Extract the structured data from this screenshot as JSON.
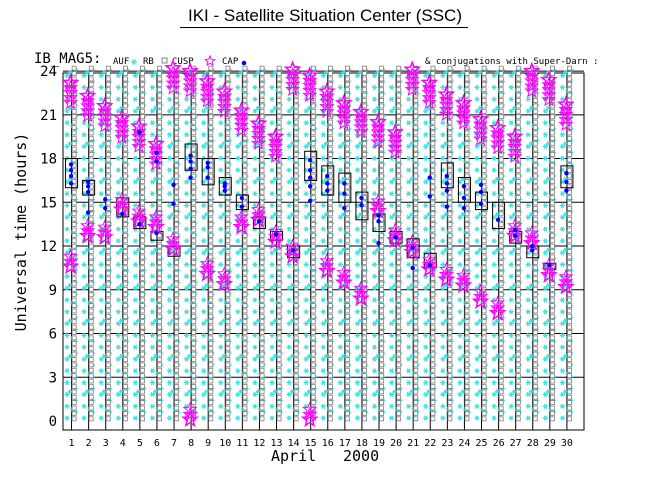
{
  "page": {
    "title": "IKI - Satellite Situation Center (SSC)"
  },
  "legend": {
    "satellite": "IB_MAG5:",
    "auf": "AUF",
    "rb": "RB",
    "cusp": "CUSP",
    "cap": "CAP",
    "conjugations": "& conjugations with Super-Darn :"
  },
  "colors": {
    "auf": "#40e0e0",
    "rb": "#808080",
    "cusp": "#ff00ff",
    "cap": "#0000ff",
    "frame": "#000000"
  },
  "chart_data": {
    "type": "table",
    "ylabel": "Universal time (hours)",
    "xlabel": "April",
    "year": "2000",
    "ylim": [
      0,
      24.5
    ],
    "yticks": [
      0,
      3,
      6,
      9,
      12,
      15,
      18,
      21,
      24
    ],
    "days": [
      1,
      2,
      3,
      4,
      5,
      6,
      7,
      8,
      9,
      10,
      11,
      12,
      13,
      14,
      15,
      16,
      17,
      18,
      19,
      20,
      21,
      22,
      23,
      24,
      25,
      26,
      27,
      28,
      29,
      30
    ],
    "cusp_start": [
      23.2,
      22.3,
      21.6,
      20.8,
      20.2,
      19.0,
      24.2,
      24.0,
      23.3,
      22.6,
      21.3,
      20.4,
      19.5,
      24.1,
      23.7,
      22.6,
      21.8,
      21.2,
      20.5,
      19.8,
      24.1,
      23.2,
      22.4,
      21.8,
      20.7,
      20.1,
      19.5,
      24.0,
      23.4,
      21.7
    ],
    "cusp_end": [
      10.6,
      12.7,
      12.6,
      14.5,
      13.7,
      13.3,
      11.8,
      0.1,
      10.1,
      9.4,
      13.3,
      13.8,
      12.3,
      11.3,
      0.1,
      10.3,
      9.5,
      8.4,
      14.4,
      12.4,
      11.6,
      10.4,
      9.7,
      9.3,
      8.2,
      7.4,
      12.7,
      12.2,
      10.0,
      9.2
    ],
    "box_top": [
      18.0,
      16.5,
      null,
      15.3,
      14.0,
      13.0,
      12.0,
      19.0,
      18.0,
      16.7,
      15.5,
      14.0,
      13.0,
      12.0,
      18.5,
      17.5,
      17.0,
      15.7,
      14.2,
      13.0,
      12.5,
      11.5,
      17.7,
      16.7,
      15.7,
      15.0,
      13.0,
      12.0,
      10.8,
      17.5
    ],
    "box_bottom": [
      16.0,
      15.5,
      14.5,
      14.0,
      13.2,
      12.4,
      11.3,
      17.2,
      16.2,
      15.5,
      14.5,
      13.2,
      12.4,
      11.2,
      16.5,
      15.5,
      15.0,
      13.8,
      13.0,
      12.2,
      11.2,
      10.5,
      16.0,
      15.0,
      14.5,
      13.2,
      12.2,
      11.2,
      10.4,
      16.0
    ],
    "cap_dots": [
      [
        16.3,
        16.8,
        17.2,
        17.6
      ],
      [
        15.7,
        16.1,
        16.4,
        14.3
      ],
      [
        15.2,
        14.6
      ],
      [
        14.2
      ],
      [
        13.5,
        19.8
      ],
      [
        12.9,
        17.8,
        18.4
      ],
      [
        14.9,
        16.2
      ],
      [
        17.8,
        18.2,
        16.7,
        17.3
      ],
      [
        16.7,
        17.4,
        17.7
      ],
      [
        15.8,
        16.3,
        16.1
      ],
      [
        14.7,
        15.3
      ],
      [
        13.7
      ],
      [
        12.8
      ],
      [
        11.7
      ],
      [
        17.2,
        17.9,
        15.1,
        16.1,
        16.7
      ],
      [
        16.3,
        16.8,
        15.8
      ],
      [
        15.6,
        16.3,
        14.6
      ],
      [
        14.8,
        15.3
      ],
      [
        13.7,
        14.1,
        12.2
      ],
      [
        12.6
      ],
      [
        11.9,
        10.5
      ],
      [
        15.4,
        16.7,
        10.7
      ],
      [
        16.3,
        16.8,
        14.7,
        15.8
      ],
      [
        15.3,
        14.6,
        16.1
      ],
      [
        14.9,
        15.7,
        16.2
      ],
      [
        13.8
      ],
      [
        12.7,
        13.1
      ],
      [
        11.7,
        12.0
      ],
      [
        10.7
      ],
      [
        15.8,
        16.4,
        17.0
      ]
    ]
  }
}
